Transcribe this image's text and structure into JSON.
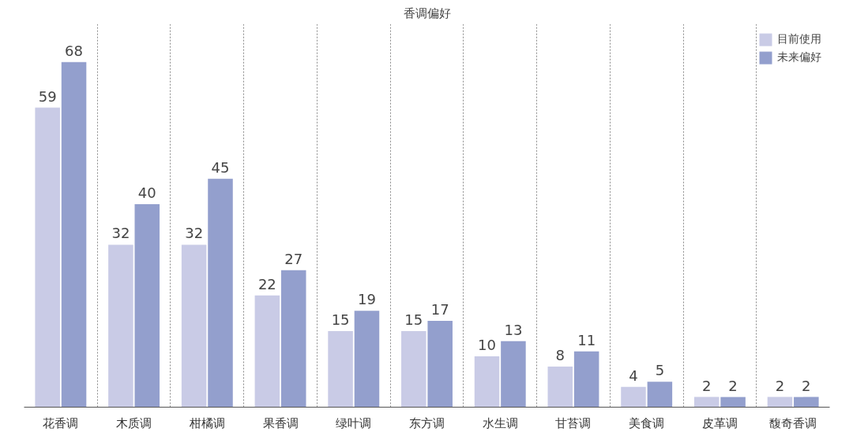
{
  "chart_data": {
    "type": "bar",
    "title": "香调偏好",
    "categories": [
      "花香调",
      "木质调",
      "柑橘调",
      "果香调",
      "绿叶调",
      "东方调",
      "水生调",
      "甘苔调",
      "美食调",
      "皮革调",
      "馥奇香调"
    ],
    "series": [
      {
        "name": "目前使用",
        "color": "#c9cbe6",
        "values": [
          59,
          32,
          32,
          22,
          15,
          15,
          10,
          8,
          4,
          2,
          2
        ]
      },
      {
        "name": "未来偏好",
        "color": "#939fcd",
        "values": [
          68,
          40,
          45,
          27,
          19,
          17,
          13,
          11,
          5,
          2,
          2
        ]
      }
    ],
    "data_labels": true,
    "grid": "x",
    "legend": "top right"
  }
}
